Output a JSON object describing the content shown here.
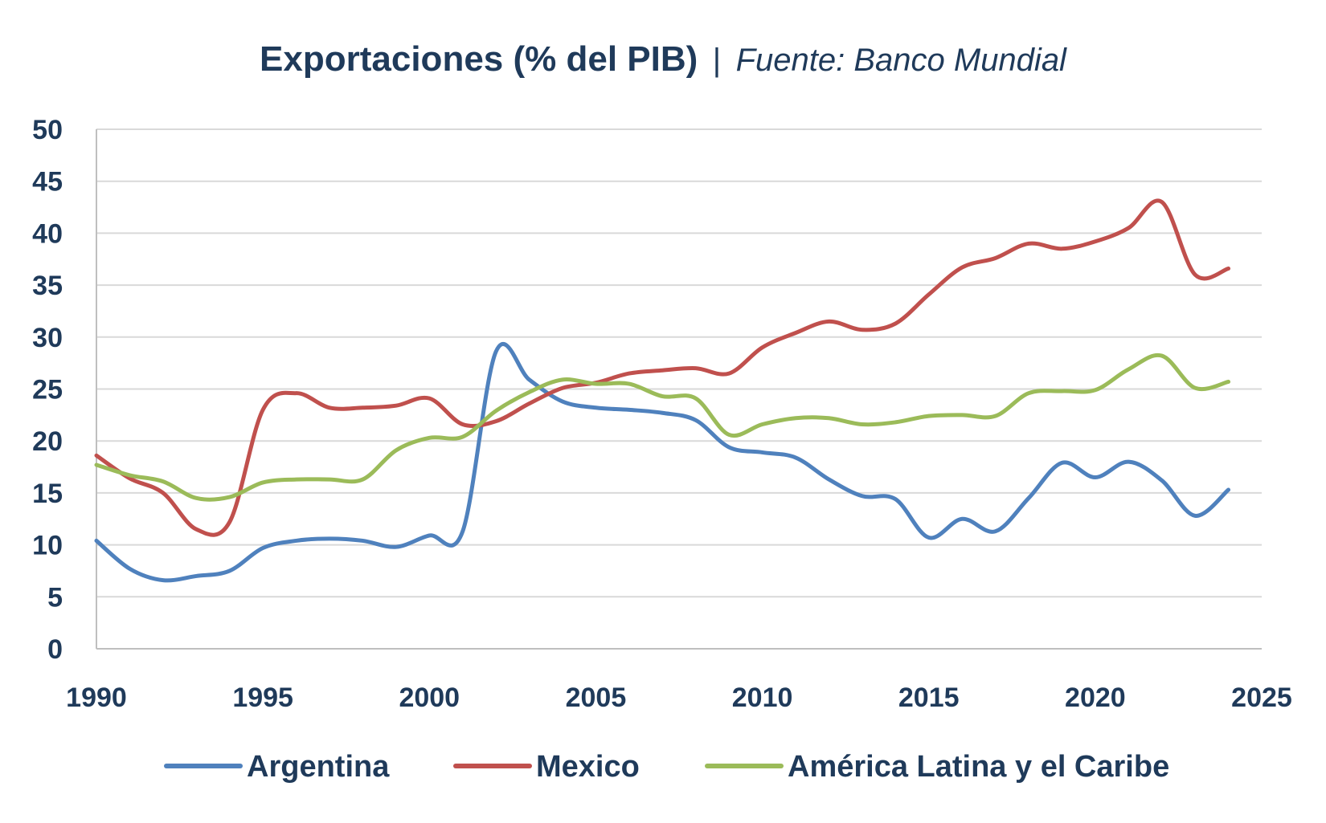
{
  "chart_data": {
    "type": "line",
    "title": "Exportaciones (% del PIB)",
    "title_separator": "|",
    "subtitle": "Fuente: Banco Mundial",
    "xlabel": "",
    "ylabel": "",
    "xlim": [
      1990,
      2025
    ],
    "ylim": [
      0,
      50
    ],
    "x_ticks": [
      1990,
      1995,
      2000,
      2005,
      2010,
      2015,
      2020,
      2025
    ],
    "y_ticks": [
      0,
      5,
      10,
      15,
      20,
      25,
      30,
      35,
      40,
      45,
      50
    ],
    "grid": "horizontal",
    "legend_position": "bottom",
    "x": [
      1990,
      1991,
      1992,
      1993,
      1994,
      1995,
      1996,
      1997,
      1998,
      1999,
      2000,
      2001,
      2002,
      2003,
      2004,
      2005,
      2006,
      2007,
      2008,
      2009,
      2010,
      2011,
      2012,
      2013,
      2014,
      2015,
      2016,
      2017,
      2018,
      2019,
      2020,
      2021,
      2022,
      2023,
      2024
    ],
    "series": [
      {
        "name": "Argentina",
        "color": "#4f81bd",
        "values": [
          10.4,
          7.7,
          6.6,
          7.0,
          7.5,
          9.7,
          10.4,
          10.6,
          10.4,
          9.8,
          10.9,
          11.3,
          28.6,
          25.9,
          23.8,
          23.2,
          23.0,
          22.7,
          22.0,
          19.4,
          18.9,
          18.4,
          16.3,
          14.7,
          14.4,
          10.7,
          12.5,
          11.3,
          14.5,
          17.9,
          16.5,
          18.0,
          16.2,
          12.8,
          15.3
        ]
      },
      {
        "name": "Mexico",
        "color": "#c0504d",
        "values": [
          18.6,
          16.4,
          15.0,
          11.5,
          12.2,
          23.0,
          24.6,
          23.2,
          23.2,
          23.4,
          24.1,
          21.6,
          21.9,
          23.6,
          25.1,
          25.6,
          26.5,
          26.8,
          27.0,
          26.5,
          29.0,
          30.4,
          31.5,
          30.7,
          31.3,
          34.1,
          36.7,
          37.6,
          39.0,
          38.5,
          39.2,
          40.5,
          43.0,
          36.0,
          36.6
        ]
      },
      {
        "name": "América Latina y el Caribe",
        "color": "#9bbb59",
        "values": [
          17.7,
          16.7,
          16.1,
          14.5,
          14.6,
          16.0,
          16.3,
          16.3,
          16.3,
          19.1,
          20.3,
          20.4,
          22.9,
          24.7,
          25.9,
          25.5,
          25.5,
          24.3,
          24.1,
          20.6,
          21.6,
          22.2,
          22.2,
          21.6,
          21.8,
          22.4,
          22.5,
          22.4,
          24.6,
          24.8,
          24.9,
          26.9,
          28.2,
          25.1,
          25.7
        ]
      }
    ]
  }
}
